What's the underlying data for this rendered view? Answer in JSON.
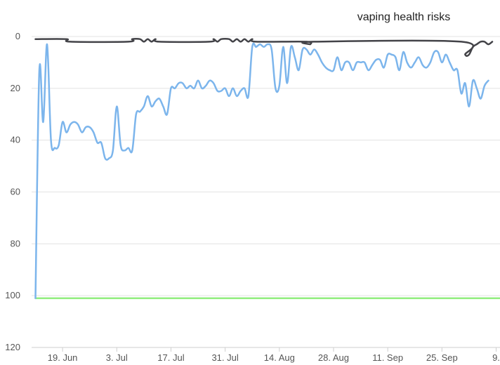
{
  "chart_data": {
    "type": "line",
    "title": "vaping health risks",
    "xlabel": "",
    "ylabel": "",
    "ylim": [
      120,
      0
    ],
    "y_reversed": true,
    "yticks": [
      0,
      20,
      40,
      60,
      80,
      100,
      120
    ],
    "xlim": [
      "2019-06-11",
      "2019-10-10"
    ],
    "xticks": [
      {
        "date": "2019-06-19",
        "label": "19. Jun"
      },
      {
        "date": "2019-07-03",
        "label": "3. Jul"
      },
      {
        "date": "2019-07-17",
        "label": "17. Jul"
      },
      {
        "date": "2019-07-31",
        "label": "31. Jul"
      },
      {
        "date": "2019-08-14",
        "label": "14. Aug"
      },
      {
        "date": "2019-08-28",
        "label": "28. Aug"
      },
      {
        "date": "2019-09-11",
        "label": "11. Sep"
      },
      {
        "date": "2019-09-25",
        "label": "25. Sep"
      },
      {
        "date": "2019-10-09",
        "label": "9."
      }
    ],
    "grid": true,
    "legend": "none",
    "series": [
      {
        "color": "#7cb5ec",
        "points": [
          [
            "2019-06-12",
            101
          ],
          [
            "2019-06-13",
            13
          ],
          [
            "2019-06-14",
            33
          ],
          [
            "2019-06-15",
            3
          ],
          [
            "2019-06-16",
            40
          ],
          [
            "2019-06-17",
            43
          ],
          [
            "2019-06-18",
            42
          ],
          [
            "2019-06-19",
            33
          ],
          [
            "2019-06-20",
            37
          ],
          [
            "2019-06-21",
            34
          ],
          [
            "2019-06-22",
            33
          ],
          [
            "2019-06-23",
            34
          ],
          [
            "2019-06-24",
            37
          ],
          [
            "2019-06-25",
            35
          ],
          [
            "2019-06-26",
            35
          ],
          [
            "2019-06-27",
            37
          ],
          [
            "2019-06-28",
            41
          ],
          [
            "2019-06-29",
            41
          ],
          [
            "2019-06-30",
            47
          ],
          [
            "2019-07-01",
            47
          ],
          [
            "2019-07-02",
            44
          ],
          [
            "2019-07-03",
            27
          ],
          [
            "2019-07-04",
            42
          ],
          [
            "2019-07-05",
            44
          ],
          [
            "2019-07-06",
            43
          ],
          [
            "2019-07-07",
            44
          ],
          [
            "2019-07-08",
            30
          ],
          [
            "2019-07-09",
            29
          ],
          [
            "2019-07-10",
            27
          ],
          [
            "2019-07-11",
            23
          ],
          [
            "2019-07-12",
            27
          ],
          [
            "2019-07-13",
            25
          ],
          [
            "2019-07-14",
            24
          ],
          [
            "2019-07-15",
            27
          ],
          [
            "2019-07-16",
            30
          ],
          [
            "2019-07-17",
            20
          ],
          [
            "2019-07-18",
            20
          ],
          [
            "2019-07-19",
            18
          ],
          [
            "2019-07-20",
            18
          ],
          [
            "2019-07-21",
            20
          ],
          [
            "2019-07-22",
            19
          ],
          [
            "2019-07-23",
            20
          ],
          [
            "2019-07-24",
            17
          ],
          [
            "2019-07-25",
            20
          ],
          [
            "2019-07-26",
            19
          ],
          [
            "2019-07-27",
            17
          ],
          [
            "2019-07-28",
            18
          ],
          [
            "2019-07-29",
            21
          ],
          [
            "2019-07-30",
            21
          ],
          [
            "2019-07-31",
            20
          ],
          [
            "2019-08-01",
            23
          ],
          [
            "2019-08-02",
            20
          ],
          [
            "2019-08-03",
            23
          ],
          [
            "2019-08-04",
            21
          ],
          [
            "2019-08-05",
            20
          ],
          [
            "2019-08-06",
            23
          ],
          [
            "2019-08-07",
            4
          ],
          [
            "2019-08-08",
            4
          ],
          [
            "2019-08-09",
            3
          ],
          [
            "2019-08-10",
            4
          ],
          [
            "2019-08-11",
            3
          ],
          [
            "2019-08-12",
            5
          ],
          [
            "2019-08-13",
            20
          ],
          [
            "2019-08-14",
            19
          ],
          [
            "2019-08-15",
            4
          ],
          [
            "2019-08-16",
            18
          ],
          [
            "2019-08-17",
            4
          ],
          [
            "2019-08-18",
            8
          ],
          [
            "2019-08-19",
            13
          ],
          [
            "2019-08-20",
            5
          ],
          [
            "2019-08-21",
            5
          ],
          [
            "2019-08-22",
            7
          ],
          [
            "2019-08-23",
            5
          ],
          [
            "2019-08-24",
            7
          ],
          [
            "2019-08-25",
            10
          ],
          [
            "2019-08-26",
            12
          ],
          [
            "2019-08-27",
            13
          ],
          [
            "2019-08-28",
            13
          ],
          [
            "2019-08-29",
            8
          ],
          [
            "2019-08-30",
            13
          ],
          [
            "2019-08-31",
            10
          ],
          [
            "2019-09-01",
            10
          ],
          [
            "2019-09-02",
            13
          ],
          [
            "2019-09-03",
            10
          ],
          [
            "2019-09-04",
            10
          ],
          [
            "2019-09-05",
            10
          ],
          [
            "2019-09-06",
            13
          ],
          [
            "2019-09-07",
            11
          ],
          [
            "2019-09-08",
            9
          ],
          [
            "2019-09-09",
            9
          ],
          [
            "2019-09-10",
            12
          ],
          [
            "2019-09-11",
            7
          ],
          [
            "2019-09-12",
            7
          ],
          [
            "2019-09-13",
            8
          ],
          [
            "2019-09-14",
            13
          ],
          [
            "2019-09-15",
            6
          ],
          [
            "2019-09-16",
            10
          ],
          [
            "2019-09-17",
            12
          ],
          [
            "2019-09-18",
            10
          ],
          [
            "2019-09-19",
            8
          ],
          [
            "2019-09-20",
            11
          ],
          [
            "2019-09-21",
            12
          ],
          [
            "2019-09-22",
            10
          ],
          [
            "2019-09-23",
            6
          ],
          [
            "2019-09-24",
            6
          ],
          [
            "2019-09-25",
            10
          ],
          [
            "2019-09-26",
            7
          ],
          [
            "2019-09-27",
            10
          ],
          [
            "2019-09-28",
            13
          ],
          [
            "2019-09-29",
            13
          ],
          [
            "2019-09-30",
            22
          ],
          [
            "2019-10-01",
            18
          ],
          [
            "2019-10-02",
            27
          ],
          [
            "2019-10-03",
            17
          ],
          [
            "2019-10-04",
            20
          ],
          [
            "2019-10-05",
            24
          ],
          [
            "2019-10-06",
            19
          ],
          [
            "2019-10-07",
            17
          ]
        ]
      },
      {
        "color": "#434348",
        "points": [
          [
            "2019-06-12",
            1
          ],
          [
            "2019-06-20",
            1
          ],
          [
            "2019-06-21",
            2
          ],
          [
            "2019-07-06",
            2
          ],
          [
            "2019-07-07",
            1
          ],
          [
            "2019-07-09",
            1
          ],
          [
            "2019-07-10",
            2
          ],
          [
            "2019-07-11",
            1
          ],
          [
            "2019-07-12",
            2
          ],
          [
            "2019-07-13",
            1
          ],
          [
            "2019-07-14",
            2
          ],
          [
            "2019-07-27",
            2
          ],
          [
            "2019-07-28",
            1
          ],
          [
            "2019-07-29",
            2
          ],
          [
            "2019-07-30",
            1
          ],
          [
            "2019-08-01",
            1
          ],
          [
            "2019-08-02",
            2
          ],
          [
            "2019-08-03",
            1
          ],
          [
            "2019-08-04",
            2
          ],
          [
            "2019-08-05",
            1
          ],
          [
            "2019-08-06",
            2
          ],
          [
            "2019-08-07",
            1
          ],
          [
            "2019-08-08",
            2
          ],
          [
            "2019-08-21",
            2
          ],
          [
            "2019-08-22",
            3
          ],
          [
            "2019-08-23",
            2
          ],
          [
            "2019-09-30",
            2
          ],
          [
            "2019-10-01",
            7
          ],
          [
            "2019-10-02",
            7
          ],
          [
            "2019-10-03",
            4
          ],
          [
            "2019-10-04",
            3
          ],
          [
            "2019-10-05",
            2
          ],
          [
            "2019-10-06",
            2
          ],
          [
            "2019-10-07",
            3
          ],
          [
            "2019-10-08",
            2
          ]
        ]
      },
      {
        "color": "#90ed7d",
        "points": [
          [
            "2019-06-12",
            101
          ],
          [
            "2019-10-10",
            101
          ]
        ]
      }
    ]
  }
}
